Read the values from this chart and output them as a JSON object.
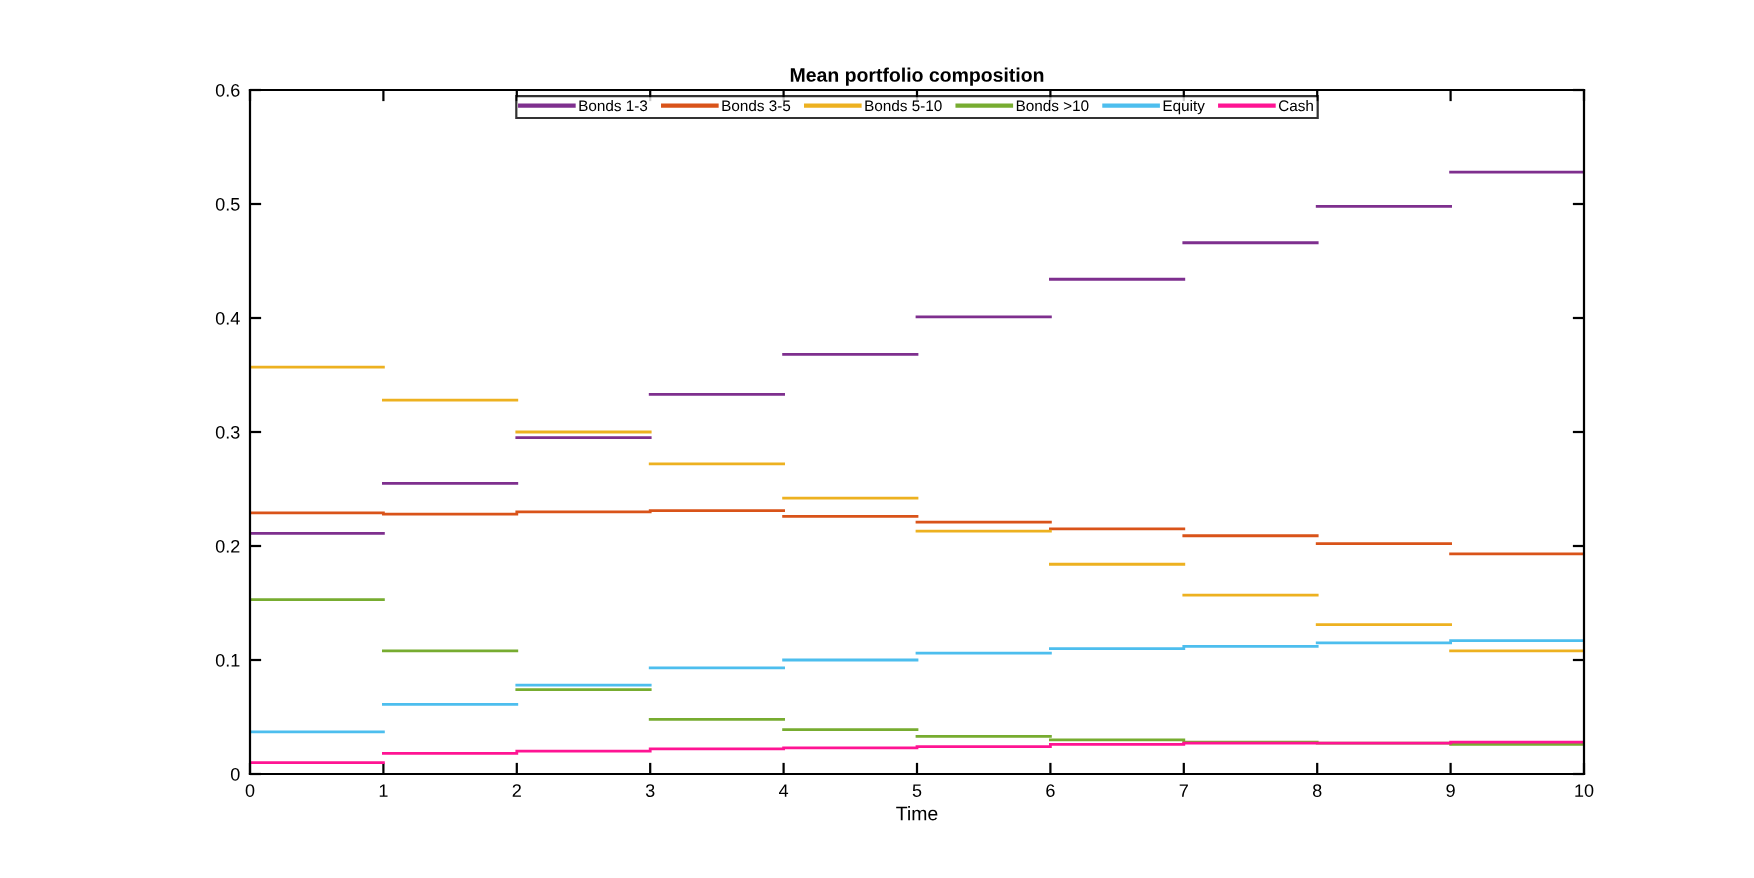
{
  "chart_data": {
    "type": "line",
    "title": "Mean portfolio composition",
    "xlabel": "Time",
    "x": [
      0,
      1,
      1,
      2,
      2,
      3,
      3,
      4,
      4,
      5,
      5,
      6,
      6,
      7,
      7,
      8,
      8,
      9,
      9,
      10
    ],
    "xlim": [
      0,
      10
    ],
    "xticks": [
      0,
      1,
      2,
      3,
      4,
      5,
      6,
      7,
      8,
      9,
      10
    ],
    "ylim": [
      0,
      0.6
    ],
    "yticks": [
      0,
      0.1,
      0.2,
      0.3,
      0.4,
      0.5,
      0.6
    ],
    "grid": false,
    "legend": "top",
    "line_style": "solid",
    "marker": "none",
    "series": [
      {
        "name": "Bonds 1-3",
        "color": "#7e2f8e",
        "values": [
          0.211,
          0.211,
          0.255,
          0.255,
          0.295,
          0.295,
          0.333,
          0.333,
          0.368,
          0.368,
          0.401,
          0.401,
          0.434,
          0.434,
          0.466,
          0.466,
          0.498,
          0.498,
          0.528,
          0.528
        ]
      },
      {
        "name": "Bonds 3-5",
        "color": "#d95319",
        "values": [
          0.229,
          0.229,
          0.228,
          0.228,
          0.23,
          0.23,
          0.231,
          0.231,
          0.226,
          0.226,
          0.221,
          0.221,
          0.215,
          0.215,
          0.209,
          0.209,
          0.202,
          0.202,
          0.193,
          0.193
        ]
      },
      {
        "name": "Bonds 5-10",
        "color": "#edb120",
        "values": [
          0.357,
          0.357,
          0.328,
          0.328,
          0.3,
          0.3,
          0.272,
          0.272,
          0.242,
          0.242,
          0.213,
          0.213,
          0.184,
          0.184,
          0.157,
          0.157,
          0.131,
          0.131,
          0.108,
          0.108
        ]
      },
      {
        "name": "Bonds >10",
        "color": "#77ac30",
        "values": [
          0.153,
          0.153,
          0.108,
          0.108,
          0.074,
          0.074,
          0.048,
          0.048,
          0.039,
          0.039,
          0.033,
          0.033,
          0.03,
          0.03,
          0.028,
          0.028,
          0.027,
          0.027,
          0.026,
          0.026
        ]
      },
      {
        "name": "Equity",
        "color": "#4dbeee",
        "values": [
          0.037,
          0.037,
          0.061,
          0.061,
          0.078,
          0.078,
          0.093,
          0.093,
          0.1,
          0.1,
          0.106,
          0.106,
          0.11,
          0.11,
          0.112,
          0.112,
          0.115,
          0.115,
          0.117,
          0.117
        ]
      },
      {
        "name": "Cash",
        "color": "#ff1493",
        "values": [
          0.01,
          0.01,
          0.018,
          0.018,
          0.02,
          0.02,
          0.022,
          0.022,
          0.023,
          0.023,
          0.024,
          0.024,
          0.026,
          0.026,
          0.027,
          0.027,
          0.027,
          0.027,
          0.028,
          0.028
        ]
      }
    ]
  }
}
